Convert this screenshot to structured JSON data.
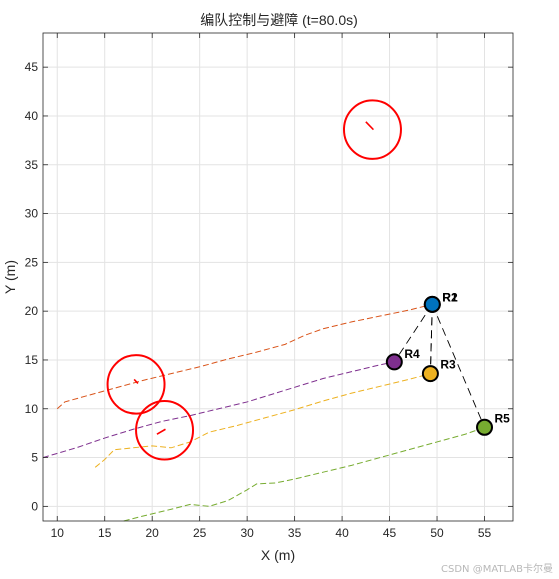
{
  "chart_data": {
    "type": "scatter",
    "title": "编队控制与避障 (t=80.0s)",
    "xlabel": "X (m)",
    "ylabel": "Y (m)",
    "xlim": [
      8.5,
      58
    ],
    "ylim": [
      -1.5,
      48.5
    ],
    "xticks": [
      10,
      15,
      20,
      25,
      30,
      35,
      40,
      45,
      50,
      55
    ],
    "yticks": [
      0,
      5,
      10,
      15,
      20,
      25,
      30,
      35,
      40,
      45
    ],
    "grid": true,
    "trajectories": [
      {
        "name": "R1",
        "color": "#d95319",
        "x": [
          10,
          10.8,
          13,
          16,
          19,
          22,
          25,
          28,
          31,
          34,
          36,
          38,
          41,
          44,
          47,
          49.5
        ],
        "y": [
          10,
          10.7,
          11.3,
          12.1,
          12.9,
          13.6,
          14.3,
          15.1,
          15.8,
          16.6,
          17.5,
          18.2,
          18.9,
          19.5,
          20.1,
          20.7
        ]
      },
      {
        "name": "R4",
        "color": "#7e2f8e",
        "x": [
          8.5,
          12,
          15,
          18,
          21,
          24,
          27,
          30,
          32,
          34,
          36,
          38,
          41,
          44,
          45.5
        ],
        "y": [
          5.0,
          6.0,
          7.0,
          7.9,
          8.7,
          9.3,
          10.0,
          10.7,
          11.3,
          11.9,
          12.5,
          13.1,
          13.8,
          14.5,
          14.8
        ]
      },
      {
        "name": "R3",
        "color": "#edb120",
        "x": [
          14,
          15,
          16,
          18,
          20,
          22,
          24,
          26,
          29,
          32,
          35,
          38,
          41,
          44,
          47,
          49.3
        ],
        "y": [
          4.0,
          4.8,
          5.8,
          6.0,
          6.2,
          6.0,
          6.6,
          7.6,
          8.3,
          9.1,
          9.9,
          10.8,
          11.6,
          12.3,
          13.0,
          13.6
        ]
      },
      {
        "name": "R5",
        "color": "#77ac30",
        "x": [
          17,
          19,
          22,
          24,
          26,
          28,
          30,
          31,
          33,
          35,
          38,
          41,
          44,
          47,
          50,
          53,
          55
        ],
        "y": [
          -1.5,
          -1.0,
          -0.3,
          0.2,
          0.0,
          0.6,
          1.7,
          2.3,
          2.4,
          2.8,
          3.5,
          4.2,
          5.0,
          5.8,
          6.6,
          7.4,
          8.1
        ]
      }
    ],
    "robots": [
      {
        "name": "R1",
        "x": 49.5,
        "y": 20.7,
        "color": "#d95319",
        "label": "R1"
      },
      {
        "name": "R2",
        "x": 49.5,
        "y": 20.7,
        "color": "#0072bd",
        "label": "R2"
      },
      {
        "name": "R3",
        "x": 49.3,
        "y": 13.6,
        "color": "#edb120",
        "label": "R3"
      },
      {
        "name": "R4",
        "x": 45.5,
        "y": 14.8,
        "color": "#7e2f8e",
        "label": "R4"
      },
      {
        "name": "R5",
        "x": 55.0,
        "y": 8.1,
        "color": "#77ac30",
        "label": "R5"
      }
    ],
    "formation_links": [
      [
        "R1",
        "R4"
      ],
      [
        "R1",
        "R3"
      ],
      [
        "R1",
        "R5"
      ],
      [
        "R2",
        "R3"
      ]
    ],
    "obstacles": [
      {
        "x": 43.2,
        "y": 38.6,
        "r": 3.0,
        "trail": [
          [
            42.5,
            39.4
          ],
          [
            43.3,
            38.6
          ]
        ]
      },
      {
        "x": 18.3,
        "y": 12.5,
        "r": 3.0,
        "trail": [
          [
            18.1,
            13.0
          ],
          [
            18.5,
            12.6
          ]
        ]
      },
      {
        "x": 21.3,
        "y": 7.8,
        "r": 3.0,
        "trail": [
          [
            20.5,
            7.4
          ],
          [
            21.4,
            7.9
          ]
        ]
      }
    ],
    "obstacle_color": "#ff0000",
    "link_color": "#000000"
  },
  "watermark": "CSDN @MATLAB卡尔曼"
}
